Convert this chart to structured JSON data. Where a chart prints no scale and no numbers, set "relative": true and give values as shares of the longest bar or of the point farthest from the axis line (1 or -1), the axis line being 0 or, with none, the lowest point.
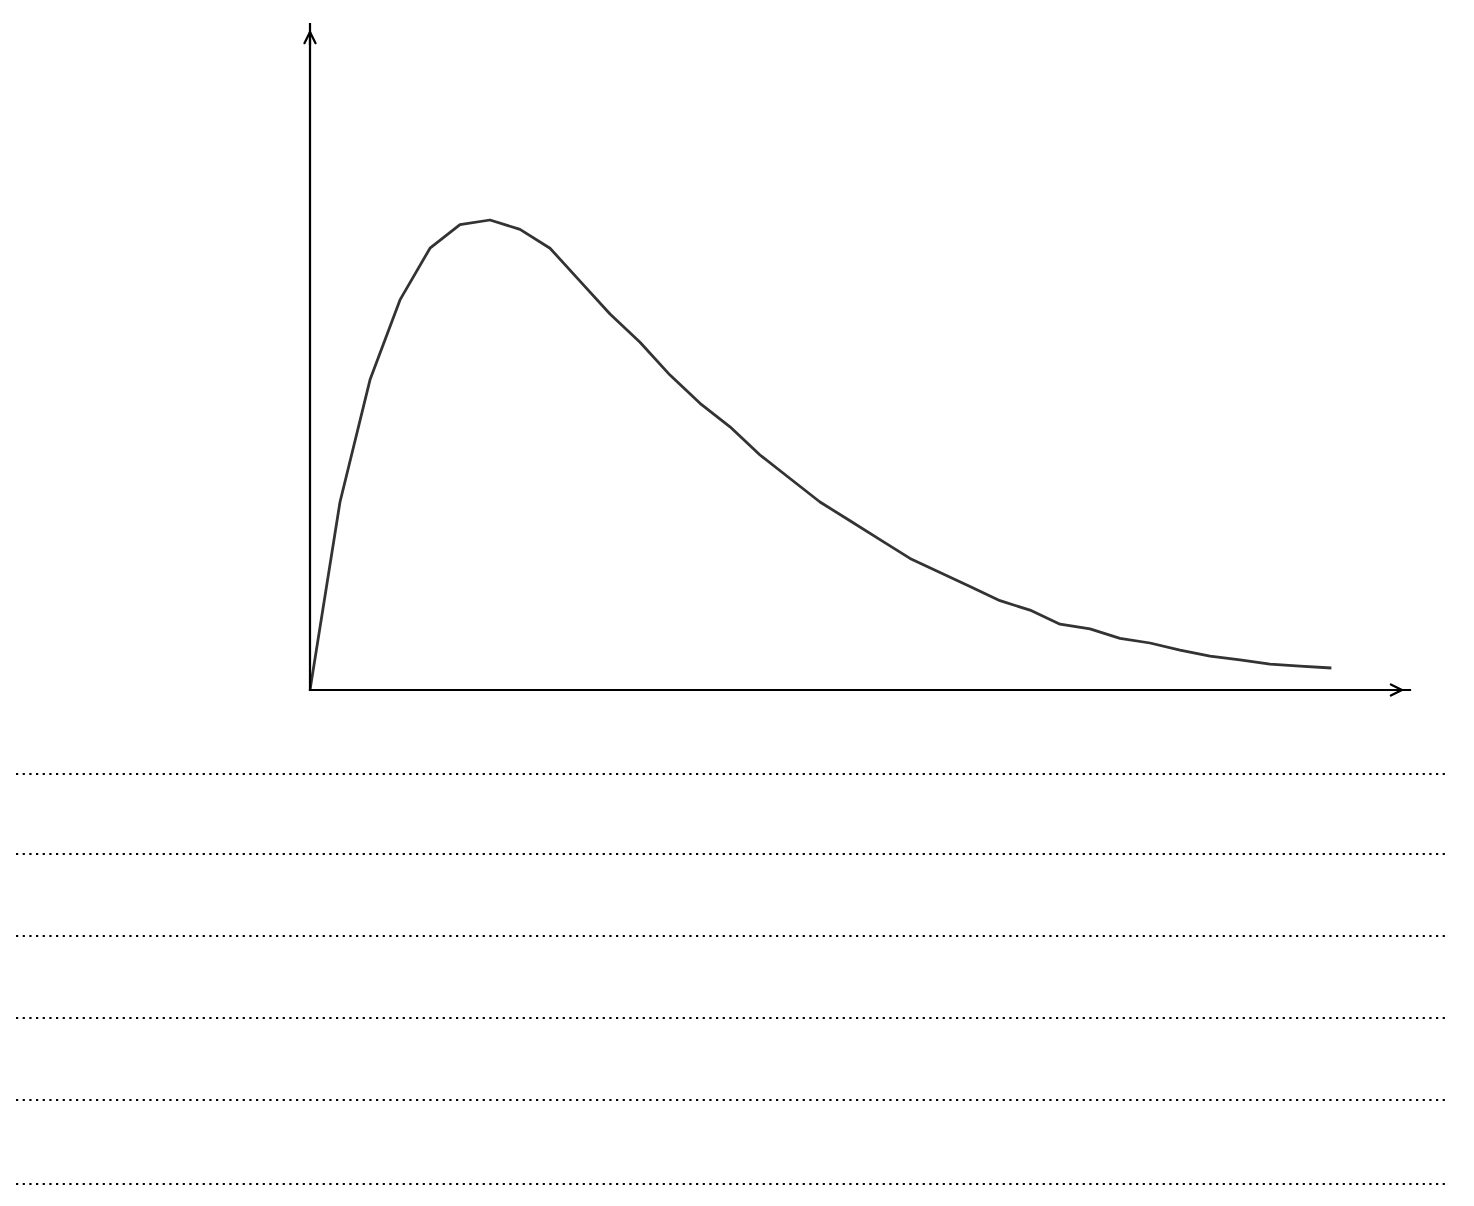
{
  "chart_data": {
    "type": "line",
    "relative": true,
    "color": "#333333",
    "line_style": "solid",
    "categories": [
      null,
      null,
      null,
      null,
      null,
      null,
      null,
      null,
      null,
      null,
      null,
      null,
      null,
      null,
      null,
      null,
      null,
      null,
      null,
      null,
      null,
      null,
      null,
      null,
      null,
      null,
      null,
      null,
      null,
      null,
      null,
      null,
      null,
      null,
      null
    ],
    "values": [
      0,
      0.4,
      0.66,
      0.83,
      0.94,
      0.99,
      1.0,
      0.98,
      0.94,
      0.87,
      0.8,
      0.74,
      0.67,
      0.61,
      0.56,
      0.5,
      0.45,
      0.4,
      0.36,
      0.32,
      0.28,
      0.25,
      0.22,
      0.19,
      0.17,
      0.14,
      0.13,
      0.11,
      0.1,
      0.085,
      0.072,
      0.064,
      0.055,
      0.051,
      0.047
    ]
  }
}
